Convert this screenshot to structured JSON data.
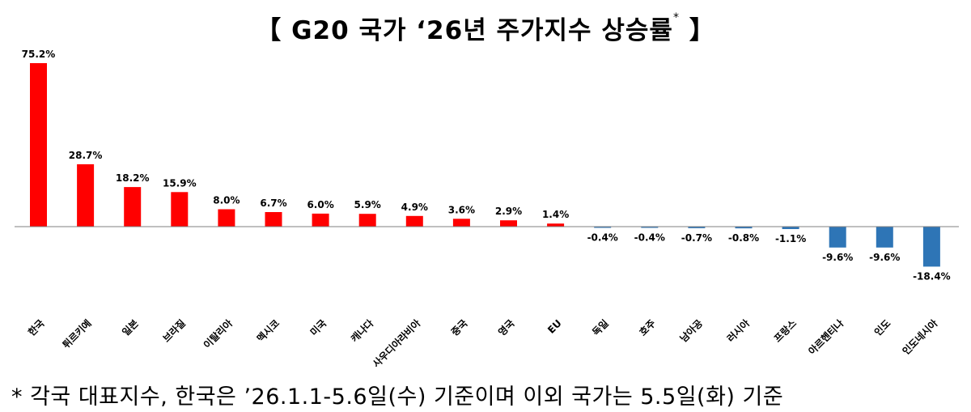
{
  "title": {
    "open_bracket": "【",
    "main": "G20 국가 ‘26년 주가지수 상승률",
    "asterisk": "*",
    "close_bracket": "】"
  },
  "footnote": "* 각국 대표지수, 한국은 ’26.1.1-5.6일(수) 기준이며 이외 국가는 5.5일(화) 기준",
  "colors": {
    "positive": "#ff0000",
    "negative": "#2e75b6",
    "axis": "#808080"
  },
  "chart_data": {
    "type": "bar",
    "title": "【 G20 국가 ‘26년 주가지수 상승률* 】",
    "xlabel": "",
    "ylabel": "",
    "ylim": [
      -20,
      80
    ],
    "grid": false,
    "legend": "none",
    "value_suffix": "%",
    "categories": [
      "한국",
      "튀르키예",
      "일본",
      "브라질",
      "이탈리아",
      "멕시코",
      "미국",
      "캐나다",
      "사우디아라비아",
      "중국",
      "영국",
      "EU",
      "독일",
      "호주",
      "남아공",
      "러시아",
      "프랑스",
      "아르헨티나",
      "인도",
      "인도네시아"
    ],
    "values": [
      75.2,
      28.7,
      18.2,
      15.9,
      8.0,
      6.7,
      6.0,
      5.9,
      4.9,
      3.6,
      2.9,
      1.4,
      -0.4,
      -0.4,
      -0.7,
      -0.8,
      -1.1,
      -9.6,
      -9.6,
      -18.4
    ],
    "labels": [
      "75.2%",
      "28.7%",
      "18.2%",
      "15.9%",
      "8.0%",
      "6.7%",
      "6.0%",
      "5.9%",
      "4.9%",
      "3.6%",
      "2.9%",
      "1.4%",
      "-0.4%",
      "-0.4%",
      "-0.7%",
      "-0.8%",
      "-1.1%",
      "-9.6%",
      "-9.6%",
      "-18.4%"
    ]
  }
}
